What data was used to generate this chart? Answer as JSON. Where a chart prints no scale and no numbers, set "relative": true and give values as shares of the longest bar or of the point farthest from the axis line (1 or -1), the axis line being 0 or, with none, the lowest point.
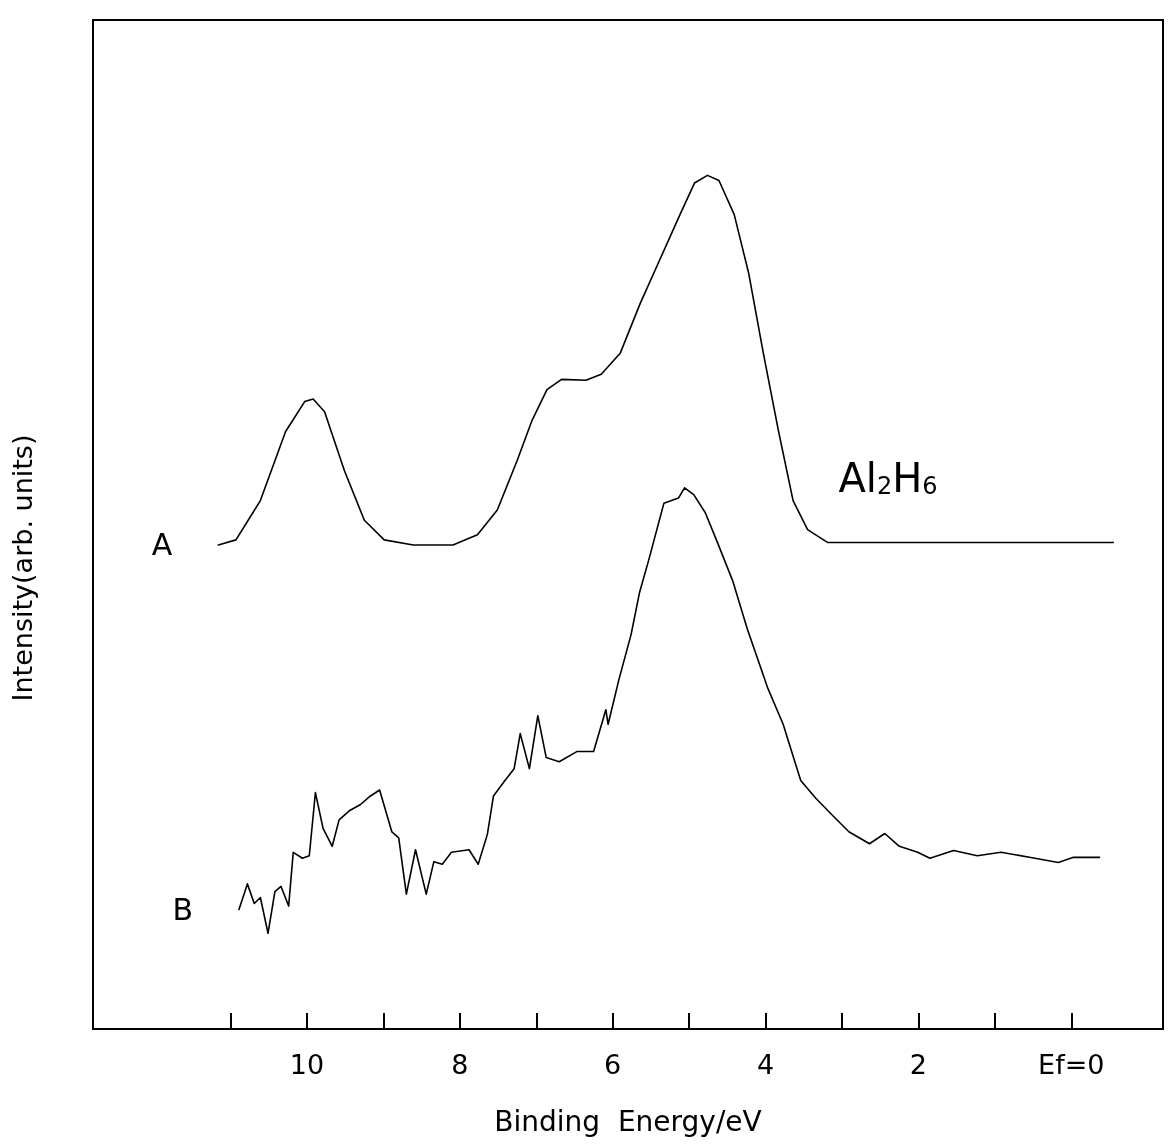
{
  "chart_data": {
    "type": "line",
    "relative": true,
    "xlabel": "Binding  Energy/eV",
    "ylabel": "Intensity(arb. units)",
    "xlim": [
      12.8,
      -1.2
    ],
    "xticks": [
      {
        "value": 11,
        "label": null
      },
      10,
      {
        "value": 9,
        "label": null
      },
      8,
      {
        "value": 7,
        "label": null
      },
      6,
      {
        "value": 5,
        "label": null
      },
      4,
      {
        "value": 3,
        "label": null
      },
      2,
      {
        "value": 1,
        "label": null
      },
      {
        "value": 0,
        "label": "Ef=0"
      }
    ],
    "annotations": [
      "Al$_{2}$H$_{6}$"
    ],
    "series": [
      {
        "name": "A",
        "color": "#000000",
        "x": [
          11.16,
          10.93,
          10.61,
          10.28,
          10.03,
          9.92,
          9.77,
          9.51,
          9.25,
          8.99,
          8.61,
          8.09,
          7.77,
          7.51,
          7.25,
          7.06,
          6.86,
          6.67,
          6.35,
          6.15,
          5.9,
          5.64,
          5.38,
          5.12,
          4.93,
          4.76,
          4.61,
          4.41,
          4.22,
          4.03,
          3.83,
          3.64,
          3.45,
          3.19,
          -0.55
        ],
        "values": [
          0.567,
          0.573,
          0.619,
          0.7,
          0.735,
          0.738,
          0.723,
          0.654,
          0.596,
          0.573,
          0.567,
          0.567,
          0.579,
          0.608,
          0.666,
          0.712,
          0.749,
          0.761,
          0.76,
          0.767,
          0.792,
          0.85,
          0.902,
          0.954,
          0.991,
          1.0,
          0.994,
          0.954,
          0.885,
          0.792,
          0.7,
          0.619,
          0.585,
          0.57,
          0.57
        ]
      },
      {
        "name": "B",
        "color": "#000000",
        "x": [
          10.89,
          10.78,
          10.69,
          10.61,
          10.51,
          10.42,
          10.34,
          10.24,
          10.18,
          10.06,
          9.97,
          9.89,
          9.79,
          9.67,
          9.58,
          9.44,
          9.3,
          9.17,
          9.05,
          8.89,
          8.8,
          8.7,
          8.58,
          8.44,
          8.34,
          8.23,
          8.11,
          7.88,
          7.76,
          7.64,
          7.56,
          7.41,
          7.29,
          7.21,
          7.09,
          6.98,
          6.87,
          6.7,
          6.47,
          6.25,
          6.09,
          6.06,
          5.92,
          5.76,
          5.65,
          5.53,
          5.33,
          5.14,
          5.06,
          4.94,
          4.79,
          4.63,
          4.43,
          4.24,
          3.97,
          3.77,
          3.54,
          3.34,
          3.11,
          2.91,
          2.64,
          2.44,
          2.25,
          2.01,
          1.85,
          1.54,
          1.23,
          0.92,
          0.53,
          0.17,
          -0.02,
          -0.37
        ],
        "values": [
          0.14,
          0.17,
          0.147,
          0.154,
          0.112,
          0.161,
          0.167,
          0.144,
          0.207,
          0.2,
          0.203,
          0.277,
          0.235,
          0.214,
          0.245,
          0.256,
          0.263,
          0.273,
          0.28,
          0.231,
          0.224,
          0.158,
          0.21,
          0.158,
          0.196,
          0.193,
          0.207,
          0.21,
          0.193,
          0.228,
          0.273,
          0.291,
          0.305,
          0.346,
          0.305,
          0.367,
          0.318,
          0.313,
          0.325,
          0.325,
          0.374,
          0.357,
          0.409,
          0.462,
          0.511,
          0.549,
          0.616,
          0.622,
          0.634,
          0.626,
          0.605,
          0.57,
          0.525,
          0.469,
          0.399,
          0.357,
          0.291,
          0.27,
          0.249,
          0.231,
          0.217,
          0.229,
          0.214,
          0.207,
          0.2,
          0.209,
          0.203,
          0.207,
          0.201,
          0.195,
          0.201,
          0.201
        ]
      }
    ]
  }
}
